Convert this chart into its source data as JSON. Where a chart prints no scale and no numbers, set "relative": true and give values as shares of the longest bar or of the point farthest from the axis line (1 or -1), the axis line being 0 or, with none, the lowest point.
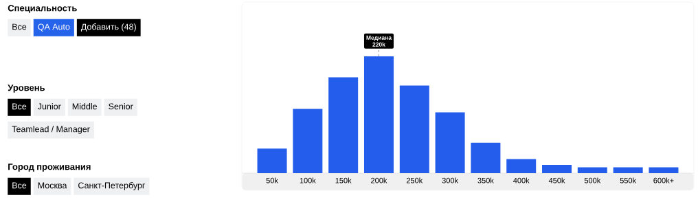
{
  "chart_data": [
    {
      "type": "other",
      "title": "Специальность",
      "categories": [
        "Все",
        "QA Auto",
        "Добавить (48)"
      ],
      "colors": [
        "#eef0f2",
        "#2563eb",
        "#000000"
      ]
    },
    {
      "type": "other",
      "title": "Уровень",
      "categories": [
        "Все",
        "Junior",
        "Middle",
        "Senior",
        "Teamlead / Manager"
      ],
      "colors": [
        "#000000",
        "#eef0f2",
        "#eef0f2",
        "#eef0f2",
        "#eef0f2"
      ]
    },
    {
      "type": "other",
      "title": "Город проживания",
      "categories": [
        "Все",
        "Москва",
        "Санкт-Петербург"
      ],
      "colors": [
        "#000000",
        "#eef0f2",
        "#eef0f2"
      ]
    },
    {
      "type": "bar",
      "relative": true,
      "color": "#245ceb",
      "categories": [
        "50k",
        "100k",
        "150k",
        "200k",
        "250k",
        "300k",
        "350k",
        "400k",
        "450k",
        "500k",
        "550k",
        "600k+"
      ],
      "values": [
        0.21,
        0.55,
        0.82,
        1,
        0.75,
        0.52,
        0.26,
        0.12,
        0.07,
        0.05,
        0.05,
        0.05
      ],
      "annotations": [
        "Медиана",
        "220k"
      ]
    }
  ]
}
